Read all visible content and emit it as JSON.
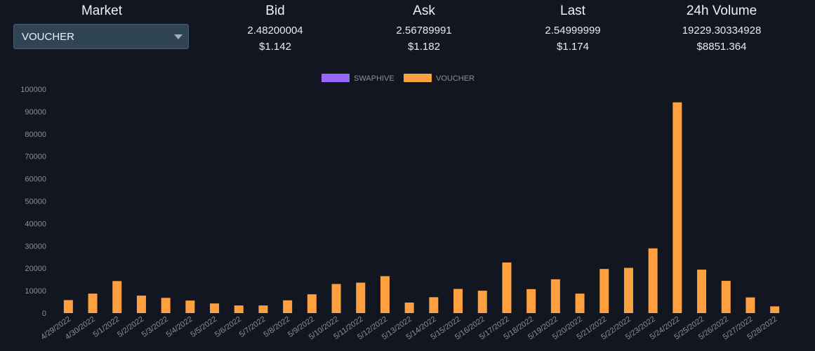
{
  "header": {
    "market": {
      "title": "Market",
      "selected": "VOUCHER"
    },
    "bid": {
      "title": "Bid",
      "value": "2.48200004",
      "usd": "$1.142"
    },
    "ask": {
      "title": "Ask",
      "value": "2.56789991",
      "usd": "$1.182"
    },
    "last": {
      "title": "Last",
      "value": "2.54999999",
      "usd": "$1.174"
    },
    "volume": {
      "title": "24h Volume",
      "value": "19229.30334928",
      "usd": "$8851.364"
    }
  },
  "colors": {
    "background": "#121620",
    "swaphive": "#9966ff",
    "voucher": "#ffa040",
    "select_bg": "#2f4553"
  },
  "chart_data": {
    "type": "bar",
    "title": "",
    "xlabel": "",
    "ylabel": "",
    "ylim": [
      0,
      100000
    ],
    "yticks": [
      0,
      10000,
      20000,
      30000,
      40000,
      50000,
      60000,
      70000,
      80000,
      90000,
      100000
    ],
    "legend_position": "top-center",
    "categories": [
      "4/29/2022",
      "4/30/2022",
      "5/1/2022",
      "5/2/2022",
      "5/3/2022",
      "5/4/2022",
      "5/5/2022",
      "5/6/2022",
      "5/7/2022",
      "5/8/2022",
      "5/9/2022",
      "5/10/2022",
      "5/11/2022",
      "5/12/2022",
      "5/13/2022",
      "5/14/2022",
      "5/15/2022",
      "5/16/2022",
      "5/17/2022",
      "5/18/2022",
      "5/19/2022",
      "5/20/2022",
      "5/21/2022",
      "5/22/2022",
      "5/23/2022",
      "5/24/2022",
      "5/25/2022",
      "5/26/2022",
      "5/27/2022",
      "5/28/2022"
    ],
    "series": [
      {
        "name": "SWAPHIVE",
        "color": "#9966ff",
        "values": [
          0,
          0,
          0,
          0,
          0,
          0,
          0,
          0,
          0,
          0,
          0,
          0,
          0,
          0,
          0,
          0,
          0,
          0,
          0,
          0,
          0,
          0,
          0,
          0,
          0,
          0,
          0,
          0,
          0,
          0
        ]
      },
      {
        "name": "VOUCHER",
        "color": "#ffa040",
        "values": [
          5800,
          8700,
          14300,
          7800,
          6800,
          5600,
          4300,
          3400,
          3400,
          5700,
          8400,
          13000,
          13600,
          16500,
          4700,
          7100,
          10800,
          10000,
          22600,
          10700,
          15100,
          8700,
          19700,
          20200,
          28900,
          94100,
          19400,
          14400,
          7000,
          3000
        ]
      }
    ]
  }
}
